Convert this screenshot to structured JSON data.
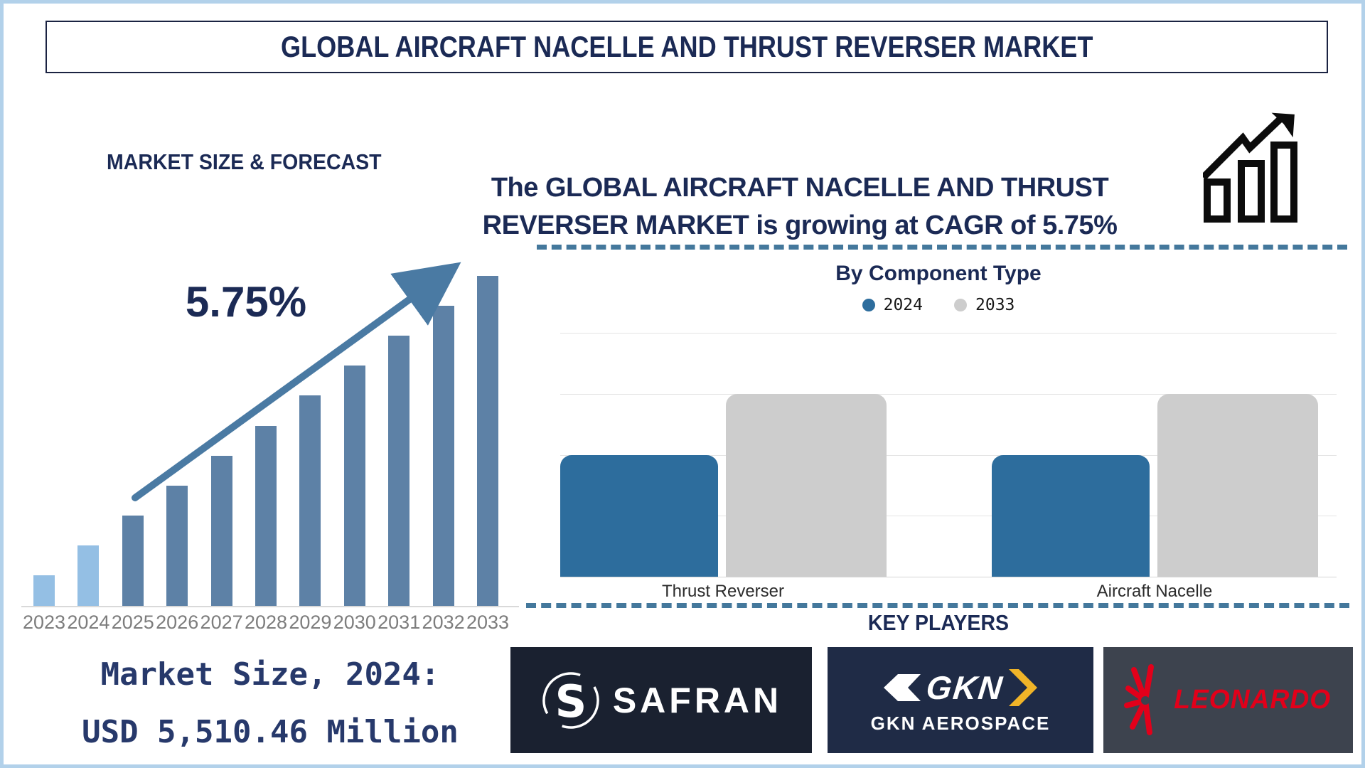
{
  "page": {
    "title": "GLOBAL AIRCRAFT NACELLE AND THRUST REVERSER MARKET"
  },
  "forecast_section": {
    "heading": "MARKET SIZE & FORECAST",
    "cagr_label": "5.75%",
    "market_size_line1": "Market Size, 2024:",
    "market_size_line2": "USD 5,510.46 Million"
  },
  "cagr_banner": {
    "line1": "The GLOBAL AIRCRAFT NACELLE AND THRUST",
    "line2": "REVERSER MARKET is growing at CAGR of 5.75%"
  },
  "component_section": {
    "heading": "By Component Type"
  },
  "key_players": {
    "heading": "KEY PLAYERS",
    "companies": [
      {
        "name": "SAFRAN"
      },
      {
        "logo_text": "GKN",
        "name": "GKN AEROSPACE"
      },
      {
        "name": "LEONARDO"
      }
    ]
  },
  "icons": {
    "growth-chart-icon": "outlined rising bar chart with zigzag up-right arrow",
    "growth-arrow": "diagonal up-right arrow over forecast bars",
    "legend-dot": "filled circle",
    "safran-emblem": "white S swirl inside thin circle arcs",
    "gkn-arrow": "white left arrow glyph with yellow right chevron",
    "leonardo-starburst": "red radiating propeller rays"
  },
  "colors": {
    "navy_text": "#1b2a55",
    "page_border": "#b2d1ea",
    "forecast_bar_light": "#94bfe4",
    "forecast_bar_steel": "#5d81a6",
    "forecast_arrow": "#4a7aa3",
    "axis_line": "#d9d9d9",
    "year_label": "#7d7d7d",
    "comp_blue_2024": "#2d6d9d",
    "comp_gray_2033": "#cdcdcd",
    "gridline": "#e4e4e4",
    "dashed_divider": "#44789c",
    "safran_bg": "#1a2130",
    "gkn_bg": "#1f2b46",
    "gkn_yellow": "#f0b428",
    "leonardo_bg": "#3d434e",
    "leonardo_red": "#e2001a"
  },
  "chart_data": [
    {
      "type": "bar",
      "title": "MARKET SIZE & FORECAST",
      "categories": [
        "2023",
        "2024",
        "2025",
        "2026",
        "2027",
        "2028",
        "2029",
        "2030",
        "2031",
        "2032",
        "2033"
      ],
      "values_pct_of_2033": [
        9.3,
        18.3,
        27.4,
        36.5,
        45.5,
        54.6,
        63.7,
        72.8,
        81.9,
        90.9,
        100
      ],
      "anchors": {
        "market_size_2024_usd_million": 5510.46,
        "cagr_pct": 5.75
      },
      "xlabel": "",
      "ylabel": "",
      "y_axis_shown": false,
      "grid": false,
      "highlight": "2023 and 2024 bars light blue (historical), 2025-2033 steel blue (forecast), rising trend arrow labeled 5.75%"
    },
    {
      "type": "bar",
      "title": "By Component Type",
      "categories": [
        "Thrust Reverser",
        "Aircraft Nacelle"
      ],
      "series": [
        {
          "name": "2024",
          "color": "#2d6d9d",
          "values": [
            2,
            2
          ]
        },
        {
          "name": "2033",
          "color": "#cdcdcd",
          "values": [
            3,
            3
          ]
        }
      ],
      "value_units": "relative gridline units (no numeric axis labels shown)",
      "ylim": [
        0,
        4
      ],
      "grid": true,
      "legend_position": "top-center"
    }
  ]
}
